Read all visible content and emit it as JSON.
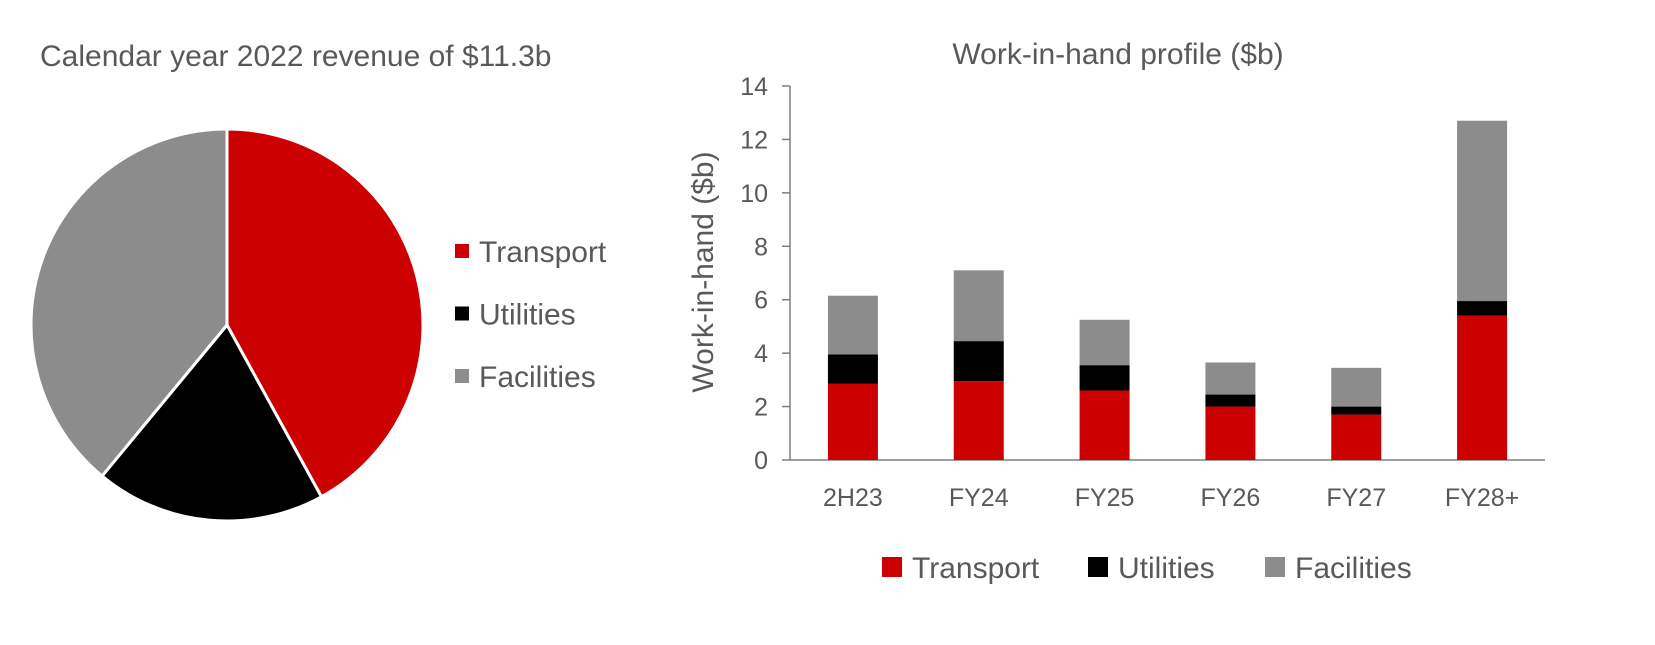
{
  "chart_data": [
    {
      "type": "pie",
      "title": "Calendar year 2022 revenue of $11.3b",
      "slices": [
        {
          "name": "Transport",
          "value": 42,
          "color": "#cc0000"
        },
        {
          "name": "Utilities",
          "value": 19,
          "color": "#000000"
        },
        {
          "name": "Facilities",
          "value": 39,
          "color": "#8c8c8d"
        }
      ],
      "legend": "right"
    },
    {
      "type": "bar",
      "stacked": true,
      "title": "Work-in-hand profile ($b)",
      "xlabel": "",
      "ylabel": "Work-in-hand ($b)",
      "ylim": [
        0,
        14
      ],
      "yticks": [
        "0",
        "2",
        "4",
        "6",
        "8",
        "10",
        "12",
        "14"
      ],
      "categories": [
        "2H23",
        "FY24",
        "FY25",
        "FY26",
        "FY27",
        "FY28+"
      ],
      "series": [
        {
          "name": "Transport",
          "color": "#cc0000",
          "values": [
            2.85,
            2.95,
            2.6,
            2.0,
            1.7,
            5.4
          ]
        },
        {
          "name": "Utilities",
          "color": "#000000",
          "values": [
            1.1,
            1.5,
            0.95,
            0.45,
            0.3,
            0.55
          ]
        },
        {
          "name": "Facilities",
          "color": "#8c8c8d",
          "values": [
            2.2,
            2.65,
            1.7,
            1.2,
            1.45,
            6.75
          ]
        }
      ],
      "grid": false,
      "legend": "bottom"
    }
  ]
}
